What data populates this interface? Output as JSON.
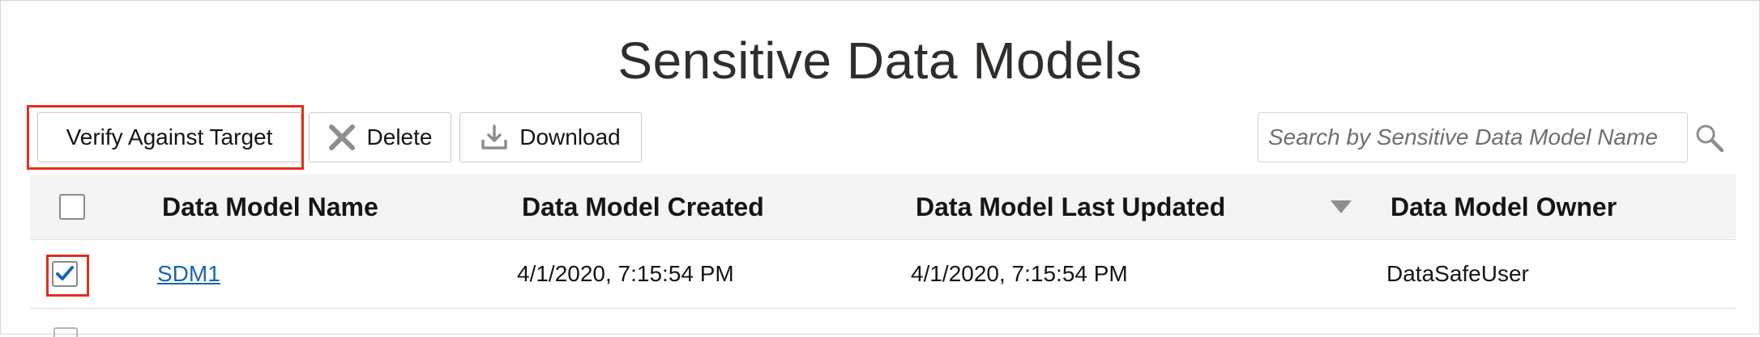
{
  "page": {
    "title": "Sensitive Data Models"
  },
  "toolbar": {
    "verify_label": "Verify Against Target",
    "delete_label": "Delete",
    "download_label": "Download"
  },
  "search": {
    "placeholder": "Search by Sensitive Data Model Name"
  },
  "table": {
    "columns": [
      "Data Model Name",
      "Data Model Created",
      "Data Model Last Updated",
      "Data Model Owner"
    ],
    "sorted_column": "Data Model Last Updated",
    "sort_direction": "descending",
    "rows": [
      {
        "name": "SDM1",
        "created": "4/1/2020, 7:15:54 PM",
        "last_updated": "4/1/2020, 7:15:54 PM",
        "owner": "DataSafeUser",
        "selected": true
      }
    ]
  },
  "colors": {
    "highlight": "#e0301e",
    "link": "#1a64b4",
    "checkmark": "#1a64b4",
    "header_bg": "#f4f4f4"
  },
  "icons": {
    "delete": "close-x-icon",
    "download": "download-tray-icon",
    "search": "search-magnifier-icon",
    "sort": "sort-triangle-down-icon",
    "checkbox_checked": "check-icon"
  }
}
